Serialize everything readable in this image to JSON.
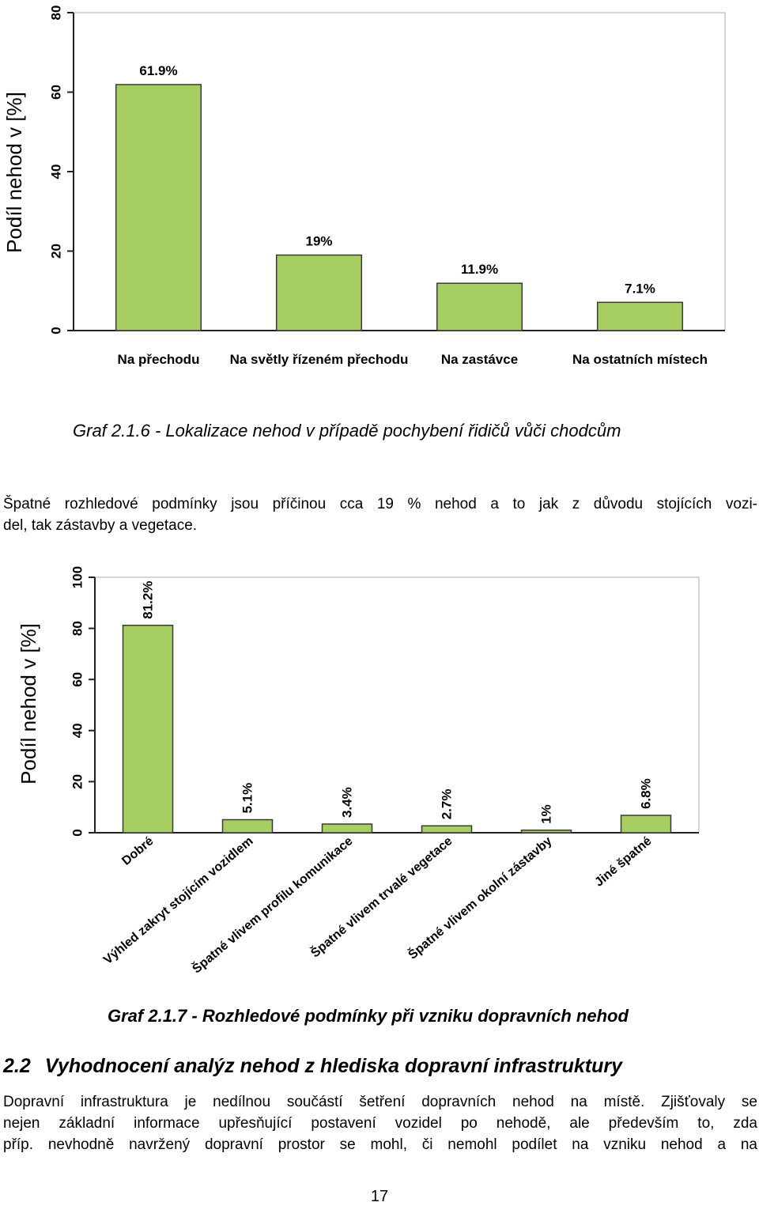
{
  "chart_data": [
    {
      "type": "bar",
      "title": "",
      "xlabel": "",
      "ylabel": "Podíl nehod v [%]",
      "ylim": [
        0,
        80
      ],
      "yticks": [
        0,
        20,
        40,
        60,
        80
      ],
      "categories": [
        "Na přechodu",
        "Na světly řízeném přechodu",
        "Na zastávce",
        "Na ostatních místech"
      ],
      "values": [
        61.9,
        19,
        11.9,
        7.1
      ],
      "data_labels": [
        "61.9%",
        "19%",
        "11.9%",
        "7.1%"
      ],
      "bar_color": "#a6ce63",
      "grid": false
    },
    {
      "type": "bar",
      "title": "",
      "xlabel": "",
      "ylabel": "Podíl nehod v [%]",
      "ylim": [
        0,
        100
      ],
      "yticks": [
        0,
        20,
        40,
        60,
        80,
        100
      ],
      "categories": [
        "Dobré",
        "Výhled zakryt stojícím vozidlem",
        "Špatné vlivem profilu komunikace",
        "Špatné vlivem trvalé vegetace",
        "Špatné vlivem okolní zástavby",
        "Jiné špatné"
      ],
      "values": [
        81.2,
        5.1,
        3.4,
        2.7,
        1,
        6.8
      ],
      "data_labels": [
        "81.2%",
        "5.1%",
        "3.4%",
        "2.7%",
        "1%",
        "6.8%"
      ],
      "bar_color": "#a6ce63",
      "grid": false
    }
  ],
  "caption1": "Graf 2.1.6 - Lokalizace nehod v případě pochybení řidičů vůči chodcům",
  "paragraph1": {
    "line1": "Špatné rozhledové podmínky jsou příčinou cca 19 % nehod a to jak z důvodu stojících vozi-",
    "line2": "del, tak zástavby a vegetace."
  },
  "caption2": "Graf 2.1.7 - Rozhledové podmínky při vzniku dopravních nehod",
  "section": {
    "number": "2.2",
    "title": "Vyhodnocení analýz nehod z hlediska dopravní infrastruktury"
  },
  "paragraph2": {
    "line1": "Dopravní infrastruktura je nedílnou součástí šetření dopravních nehod na místě. Zjišťovaly se",
    "line2": "nejen základní informace upřesňující postavení vozidel po nehodě, ale především to, zda",
    "line3": "příp. nevhodně navržený dopravní prostor se mohl, či nemohl podílet na vzniku nehod a na"
  },
  "page_number": "17"
}
